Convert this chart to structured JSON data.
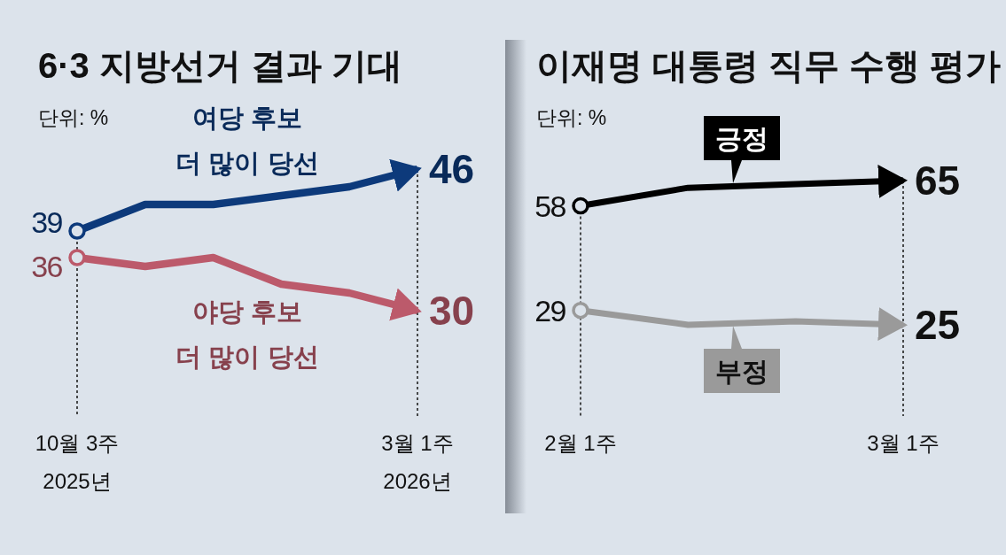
{
  "chart_data": [
    {
      "type": "line",
      "title": "6·3 지방선거 결과 기대",
      "annotations": [
        "단위: %"
      ],
      "categories": [
        "10월 3주\n2025년",
        null,
        null,
        null,
        null,
        "3월 1주\n2026년"
      ],
      "grid": "x",
      "series": [
        {
          "name": "여당 후보\n더 많이 당선",
          "color": "#0d3a7b",
          "values": [
            39,
            42,
            42,
            43,
            44,
            46
          ],
          "value_labels": [
            "39",
            null,
            null,
            null,
            null,
            "46"
          ]
        },
        {
          "name": "야당 후보\n더 많이 당선",
          "color": "#bc5a6b",
          "values": [
            36,
            35,
            36,
            33,
            32,
            30
          ],
          "value_labels": [
            "36",
            null,
            null,
            null,
            null,
            "30"
          ]
        }
      ]
    },
    {
      "type": "line",
      "title": "이재명 대통령 직무 수행 평가",
      "annotations": [
        "단위: %"
      ],
      "categories": [
        "2월 1주",
        null,
        null,
        "3월 1주"
      ],
      "grid": "x",
      "series": [
        {
          "name": "긍정",
          "color": "#000000",
          "values": [
            58,
            63,
            64,
            65
          ],
          "value_labels": [
            "58",
            null,
            null,
            "65"
          ]
        },
        {
          "name": "부정",
          "color": "#9a9a9a",
          "values": [
            29,
            25,
            26,
            25
          ],
          "value_labels": [
            "29",
            null,
            null,
            "25"
          ]
        }
      ]
    }
  ]
}
